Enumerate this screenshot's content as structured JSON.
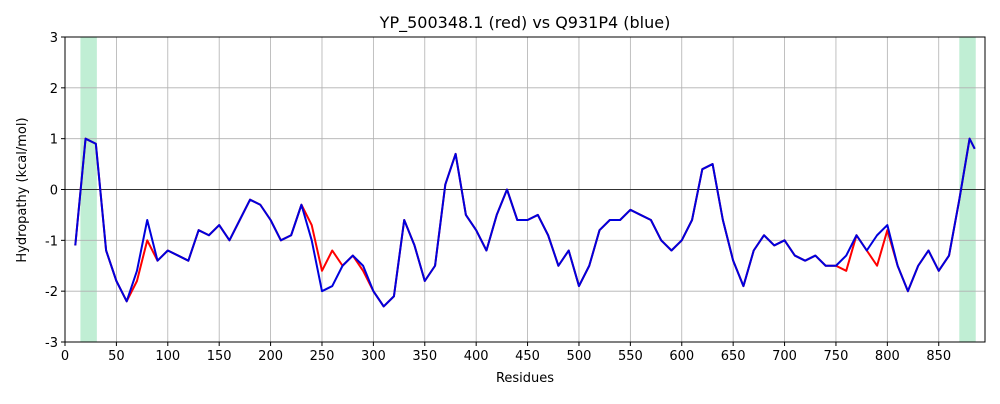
{
  "chart_data": {
    "type": "line",
    "title": "YP_500348.1 (red) vs Q931P4 (blue)",
    "xlabel": "Residues",
    "ylabel": "Hydropathy (kcal/mol)",
    "x": [
      10,
      20,
      30,
      40,
      50,
      60,
      70,
      80,
      90,
      100,
      110,
      120,
      130,
      140,
      150,
      160,
      170,
      180,
      190,
      200,
      210,
      220,
      230,
      240,
      250,
      260,
      270,
      280,
      290,
      300,
      310,
      320,
      330,
      340,
      350,
      360,
      370,
      380,
      390,
      400,
      410,
      420,
      430,
      440,
      450,
      460,
      470,
      480,
      490,
      500,
      510,
      520,
      530,
      540,
      550,
      560,
      570,
      580,
      590,
      600,
      610,
      620,
      630,
      640,
      650,
      660,
      670,
      680,
      690,
      700,
      710,
      720,
      730,
      740,
      750,
      760,
      770,
      780,
      790,
      800,
      810,
      820,
      830,
      840,
      850,
      860,
      870,
      880,
      885
    ],
    "series": [
      {
        "name": "YP_500348.1",
        "color": "#ff0000",
        "values": [
          -1.1,
          1.0,
          0.9,
          -1.2,
          -1.8,
          -2.2,
          -1.8,
          -1.0,
          -1.4,
          -1.2,
          -1.3,
          -1.4,
          -0.8,
          -0.9,
          -0.7,
          -1.0,
          -0.6,
          -0.2,
          -0.3,
          -0.6,
          -1.0,
          -0.9,
          -0.3,
          -0.7,
          -1.6,
          -1.2,
          -1.5,
          -1.3,
          -1.6,
          -2.0,
          -2.3,
          -2.1,
          -0.6,
          -1.1,
          -1.8,
          -1.5,
          0.1,
          0.7,
          -0.5,
          -0.8,
          -1.2,
          -0.5,
          0.0,
          -0.6,
          -0.6,
          -0.5,
          -0.9,
          -1.5,
          -1.2,
          -1.9,
          -1.5,
          -0.8,
          -0.6,
          -0.6,
          -0.4,
          -0.5,
          -0.6,
          -1.0,
          -1.2,
          -1.0,
          -0.6,
          0.4,
          0.5,
          -0.6,
          -1.4,
          -1.9,
          -1.2,
          -0.9,
          -1.1,
          -1.0,
          -1.3,
          -1.4,
          -1.3,
          -1.5,
          -1.5,
          -1.6,
          -0.9,
          -1.2,
          -1.5,
          -0.8,
          -1.5,
          -2.0,
          -1.5,
          -1.2,
          -1.6,
          -1.3,
          -0.2,
          1.0,
          0.8
        ]
      },
      {
        "name": "Q931P4",
        "color": "#0000dd",
        "values": [
          -1.1,
          1.0,
          0.9,
          -1.2,
          -1.8,
          -2.2,
          -1.6,
          -0.6,
          -1.4,
          -1.2,
          -1.3,
          -1.4,
          -0.8,
          -0.9,
          -0.7,
          -1.0,
          -0.6,
          -0.2,
          -0.3,
          -0.6,
          -1.0,
          -0.9,
          -0.3,
          -1.0,
          -2.0,
          -1.9,
          -1.5,
          -1.3,
          -1.5,
          -2.0,
          -2.3,
          -2.1,
          -0.6,
          -1.1,
          -1.8,
          -1.5,
          0.1,
          0.7,
          -0.5,
          -0.8,
          -1.2,
          -0.5,
          0.0,
          -0.6,
          -0.6,
          -0.5,
          -0.9,
          -1.5,
          -1.2,
          -1.9,
          -1.5,
          -0.8,
          -0.6,
          -0.6,
          -0.4,
          -0.5,
          -0.6,
          -1.0,
          -1.2,
          -1.0,
          -0.6,
          0.4,
          0.5,
          -0.6,
          -1.4,
          -1.9,
          -1.2,
          -0.9,
          -1.1,
          -1.0,
          -1.3,
          -1.4,
          -1.3,
          -1.5,
          -1.5,
          -1.3,
          -0.9,
          -1.2,
          -0.9,
          -0.7,
          -1.5,
          -2.0,
          -1.5,
          -1.2,
          -1.6,
          -1.3,
          -0.2,
          1.0,
          0.8
        ]
      }
    ],
    "highlights": [
      [
        15,
        31
      ],
      [
        870,
        886
      ]
    ],
    "highlight_color": "#c0eed4",
    "xlim": [
      0,
      895
    ],
    "ylim": [
      -3,
      3
    ],
    "xticks": [
      0,
      50,
      100,
      150,
      200,
      250,
      300,
      350,
      400,
      450,
      500,
      550,
      600,
      650,
      700,
      750,
      800,
      850
    ],
    "yticks": [
      -3,
      -2,
      -1,
      0,
      1,
      2,
      3
    ],
    "grid": true,
    "zero_line": true
  }
}
